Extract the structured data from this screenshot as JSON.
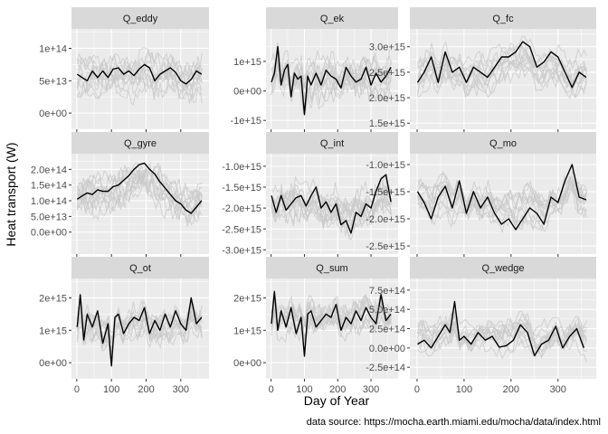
{
  "chart_data": {
    "type": "line",
    "layout": "facet-grid-3x3",
    "ylabel": "Heat transport (W)",
    "xlabel": "Day of Year",
    "caption": "data source: https://mocha.earth.miami.edu/mocha/data/index.html",
    "x_range": [
      1,
      365
    ],
    "x_ticks": [
      0,
      100,
      200,
      300
    ],
    "x_tick_labels": [
      "0",
      "100",
      "200",
      "300"
    ],
    "grid": true,
    "colors": {
      "highlight": "#000000",
      "background_series": "#c8c8c8",
      "panel_bg": "#ebebeb",
      "strip_bg": "#d9d9d9",
      "gridline": "#ffffff"
    },
    "panels": [
      {
        "name": "Q_eddy",
        "ylim": [
          -25000000000000.0,
          130000000000000.0
        ],
        "y_ticks": [
          0,
          50000000000000.0,
          100000000000000.0
        ],
        "y_tick_labels": [
          "0e+00",
          "5e+13",
          "1e+14"
        ],
        "highlight": {
          "x": [
            1,
            15,
            30,
            45,
            60,
            75,
            90,
            105,
            120,
            135,
            150,
            165,
            180,
            195,
            210,
            225,
            240,
            255,
            270,
            285,
            300,
            315,
            330,
            345,
            360
          ],
          "y": [
            60000000000000.0,
            55000000000000.0,
            50000000000000.0,
            65000000000000.0,
            55000000000000.0,
            65000000000000.0,
            55000000000000.0,
            68000000000000.0,
            70000000000000.0,
            60000000000000.0,
            65000000000000.0,
            58000000000000.0,
            68000000000000.0,
            75000000000000.0,
            70000000000000.0,
            50000000000000.0,
            60000000000000.0,
            65000000000000.0,
            70000000000000.0,
            63000000000000.0,
            50000000000000.0,
            45000000000000.0,
            52000000000000.0,
            65000000000000.0,
            60000000000000.0
          ]
        },
        "background_band": {
          "min": -10000000000000.0,
          "max": 110000000000000.0
        }
      },
      {
        "name": "Q_ek",
        "ylim": [
          -1300000000000000.0,
          2100000000000000.0
        ],
        "y_ticks": [
          -1000000000000000.0,
          0,
          1000000000000000.0
        ],
        "y_tick_labels": [
          "-1e+15",
          "0e+00",
          "1e+15"
        ],
        "highlight": {
          "x": [
            1,
            10,
            20,
            30,
            40,
            50,
            60,
            70,
            80,
            90,
            100,
            110,
            120,
            135,
            150,
            165,
            180,
            195,
            210,
            225,
            240,
            255,
            270,
            285,
            300,
            315,
            330,
            345,
            360
          ],
          "y": [
            300000000000000.0,
            600000000000000.0,
            1500000000000000.0,
            200000000000000.0,
            700000000000000.0,
            900000000000000.0,
            -200000000000000.0,
            600000000000000.0,
            400000000000000.0,
            500000000000000.0,
            -800000000000000.0,
            500000000000000.0,
            200000000000000.0,
            600000000000000.0,
            200000000000000.0,
            700000000000000.0,
            500000000000000.0,
            400000000000000.0,
            100000000000000.0,
            800000000000000.0,
            500000000000000.0,
            300000000000000.0,
            400000000000000.0,
            800000000000000.0,
            200000000000000.0,
            600000000000000.0,
            300000000000000.0,
            500000000000000.0,
            800000000000000.0
          ]
        },
        "background_band": {
          "min": -1000000000000000.0,
          "max": 1700000000000000.0
        }
      },
      {
        "name": "Q_fc",
        "ylim": [
          1380000000000000.0,
          3350000000000000.0
        ],
        "y_ticks": [
          1500000000000000.0,
          2000000000000000.0,
          2500000000000000.0,
          3000000000000000.0
        ],
        "y_tick_labels": [
          "1.5e+15",
          "2.0e+15",
          "2.5e+15",
          "3.0e+15"
        ],
        "highlight": {
          "x": [
            1,
            15,
            30,
            45,
            60,
            75,
            90,
            105,
            120,
            135,
            150,
            165,
            180,
            195,
            210,
            225,
            240,
            255,
            270,
            285,
            300,
            315,
            330,
            345,
            360
          ],
          "y": [
            2300000000000000.0,
            2500000000000000.0,
            2800000000000000.0,
            2300000000000000.0,
            2900000000000000.0,
            2500000000000000.0,
            2600000000000000.0,
            2300000000000000.0,
            2600000000000000.0,
            2500000000000000.0,
            2400000000000000.0,
            2600000000000000.0,
            2800000000000000.0,
            2800000000000000.0,
            2900000000000000.0,
            3100000000000000.0,
            3000000000000000.0,
            2600000000000000.0,
            2700000000000000.0,
            2900000000000000.0,
            2800000000000000.0,
            2500000000000000.0,
            2200000000000000.0,
            2500000000000000.0,
            2400000000000000.0
          ]
        },
        "background_band": {
          "min": 1750000000000000.0,
          "max": 3200000000000000.0
        }
      },
      {
        "name": "Q_gyre",
        "ylim": [
          -70000000000000.0,
          250000000000000.0
        ],
        "y_ticks": [
          0,
          50000000000000.0,
          100000000000000.0,
          150000000000000.0,
          200000000000000.0
        ],
        "y_tick_labels": [
          "0.0e+00",
          "5.0e+13",
          "1.0e+14",
          "1.5e+14",
          "2.0e+14"
        ],
        "highlight": {
          "x": [
            1,
            15,
            30,
            45,
            60,
            75,
            90,
            105,
            120,
            135,
            150,
            165,
            180,
            195,
            210,
            225,
            240,
            255,
            270,
            285,
            300,
            315,
            330,
            345,
            360
          ],
          "y": [
            105000000000000.0,
            115000000000000.0,
            125000000000000.0,
            120000000000000.0,
            135000000000000.0,
            130000000000000.0,
            130000000000000.0,
            145000000000000.0,
            150000000000000.0,
            165000000000000.0,
            180000000000000.0,
            200000000000000.0,
            215000000000000.0,
            220000000000000.0,
            200000000000000.0,
            185000000000000.0,
            160000000000000.0,
            140000000000000.0,
            120000000000000.0,
            100000000000000.0,
            90000000000000.0,
            70000000000000.0,
            60000000000000.0,
            80000000000000.0,
            100000000000000.0
          ]
        },
        "background_band": {
          "min": -30000000000000.0,
          "max": 220000000000000.0
        }
      },
      {
        "name": "Q_int",
        "ylim": [
          -3100000000000000.0,
          -700000000000000.0
        ],
        "y_ticks": [
          -3000000000000000.0,
          -2500000000000000.0,
          -2000000000000000.0,
          -1500000000000000.0,
          -1000000000000000.0
        ],
        "y_tick_labels": [
          "-3.0e+15",
          "-2.5e+15",
          "-2.0e+15",
          "-1.5e+15",
          "-1.0e+15"
        ],
        "highlight": {
          "x": [
            1,
            15,
            30,
            45,
            60,
            75,
            90,
            105,
            120,
            135,
            150,
            165,
            180,
            195,
            210,
            225,
            240,
            255,
            270,
            285,
            300,
            315,
            330,
            345,
            360
          ],
          "y": [
            -1700000000000000.0,
            -2100000000000000.0,
            -1700000000000000.0,
            -2050000000000000.0,
            -1900000000000000.0,
            -1750000000000000.0,
            -1700000000000000.0,
            -1950000000000000.0,
            -1700000000000000.0,
            -1500000000000000.0,
            -2000000000000000.0,
            -1850000000000000.0,
            -2100000000000000.0,
            -1900000000000000.0,
            -2400000000000000.0,
            -2300000000000000.0,
            -2600000000000000.0,
            -2100000000000000.0,
            -2200000000000000.0,
            -1900000000000000.0,
            -2000000000000000.0,
            -1600000000000000.0,
            -1300000000000000.0,
            -1200000000000000.0,
            -1850000000000000.0
          ]
        },
        "background_band": {
          "min": -2800000000000000.0,
          "max": -1000000000000000.0
        }
      },
      {
        "name": "Q_mo",
        "ylim": [
          -2650000000000000.0,
          -800000000000000.0
        ],
        "y_ticks": [
          -2500000000000000.0,
          -2000000000000000.0,
          -1500000000000000.0,
          -1000000000000000.0
        ],
        "y_tick_labels": [
          "-2.5e+15",
          "-2.0e+15",
          "-1.5e+15",
          "-1.0e+15"
        ],
        "highlight": {
          "x": [
            1,
            15,
            30,
            45,
            60,
            75,
            90,
            105,
            120,
            135,
            150,
            165,
            180,
            195,
            210,
            225,
            240,
            255,
            270,
            285,
            300,
            315,
            330,
            345,
            360
          ],
          "y": [
            -1500000000000000.0,
            -1700000000000000.0,
            -2000000000000000.0,
            -1600000000000000.0,
            -1400000000000000.0,
            -1800000000000000.0,
            -1300000000000000.0,
            -1900000000000000.0,
            -1500000000000000.0,
            -1800000000000000.0,
            -1600000000000000.0,
            -1900000000000000.0,
            -2100000000000000.0,
            -2000000000000000.0,
            -2200000000000000.0,
            -2000000000000000.0,
            -1800000000000000.0,
            -1900000000000000.0,
            -2100000000000000.0,
            -1600000000000000.0,
            -1700000000000000.0,
            -1300000000000000.0,
            -1000000000000000.0,
            -1600000000000000.0,
            -1650000000000000.0
          ]
        },
        "background_band": {
          "min": -2400000000000000.0,
          "max": -1000000000000000.0
        }
      },
      {
        "name": "Q_ot",
        "ylim": [
          -500000000000000.0,
          2600000000000000.0
        ],
        "y_ticks": [
          0,
          1000000000000000.0,
          2000000000000000.0
        ],
        "y_tick_labels": [
          "0e+00",
          "1e+15",
          "2e+15"
        ],
        "highlight": {
          "x": [
            1,
            10,
            20,
            30,
            45,
            60,
            75,
            90,
            100,
            110,
            120,
            135,
            150,
            165,
            180,
            195,
            210,
            225,
            240,
            255,
            270,
            285,
            300,
            315,
            330,
            345,
            360
          ],
          "y": [
            1100000000000000.0,
            2100000000000000.0,
            700000000000000.0,
            1500000000000000.0,
            1100000000000000.0,
            1600000000000000.0,
            600000000000000.0,
            1200000000000000.0,
            -100000000000000.0,
            1400000000000000.0,
            1500000000000000.0,
            900000000000000.0,
            1200000000000000.0,
            1400000000000000.0,
            1300000000000000.0,
            1700000000000000.0,
            900000000000000.0,
            1300000000000000.0,
            1000000000000000.0,
            1500000000000000.0,
            1100000000000000.0,
            1600000000000000.0,
            1200000000000000.0,
            1000000000000000.0,
            2000000000000000.0,
            1200000000000000.0,
            1400000000000000.0
          ]
        },
        "background_band": {
          "min": 100000000000000.0,
          "max": 2200000000000000.0
        }
      },
      {
        "name": "Q_sum",
        "ylim": [
          -500000000000000.0,
          2600000000000000.0
        ],
        "y_ticks": [
          0,
          1000000000000000.0,
          2000000000000000.0
        ],
        "y_tick_labels": [
          "0e+00",
          "1e+15",
          "2e+15"
        ],
        "highlight": {
          "x": [
            1,
            10,
            20,
            30,
            45,
            60,
            75,
            90,
            100,
            110,
            120,
            135,
            150,
            165,
            180,
            195,
            210,
            225,
            240,
            255,
            270,
            285,
            300,
            315,
            330,
            345,
            360
          ],
          "y": [
            1200000000000000.0,
            2200000000000000.0,
            1000000000000000.0,
            1600000000000000.0,
            1100000000000000.0,
            1700000000000000.0,
            900000000000000.0,
            1400000000000000.0,
            200000000000000.0,
            1500000000000000.0,
            1600000000000000.0,
            1100000000000000.0,
            1300000000000000.0,
            1500000000000000.0,
            1400000000000000.0,
            1800000000000000.0,
            1000000000000000.0,
            1400000000000000.0,
            1200000000000000.0,
            1600000000000000.0,
            1300000000000000.0,
            1700000000000000.0,
            1400000000000000.0,
            1200000000000000.0,
            2100000000000000.0,
            1300000000000000.0,
            1500000000000000.0
          ]
        },
        "background_band": {
          "min": 200000000000000.0,
          "max": 2300000000000000.0
        }
      },
      {
        "name": "Q_wedge",
        "ylim": [
          -400000000000000.0,
          900000000000000.0
        ],
        "y_ticks": [
          -250000000000000.0,
          0,
          250000000000000.0,
          500000000000000.0,
          750000000000000.0
        ],
        "y_tick_labels": [
          "-2.5e+14",
          "0.0e+00",
          "2.5e+14",
          "5.0e+14",
          "7.5e+14"
        ],
        "highlight": {
          "x": [
            1,
            15,
            30,
            45,
            60,
            70,
            80,
            90,
            100,
            115,
            130,
            145,
            160,
            175,
            190,
            205,
            220,
            235,
            250,
            265,
            280,
            295,
            310,
            325,
            340,
            355
          ],
          "y": [
            50000000000000.0,
            100000000000000.0,
            0,
            150000000000000.0,
            300000000000000.0,
            200000000000000.0,
            600000000000000.0,
            100000000000000.0,
            150000000000000.0,
            50000000000000.0,
            200000000000000.0,
            100000000000000.0,
            150000000000000.0,
            10000000000000.0,
            30000000000000.0,
            100000000000000.0,
            300000000000000.0,
            200000000000000.0,
            -100000000000000.0,
            50000000000000.0,
            100000000000000.0,
            280000000000000.0,
            0,
            150000000000000.0,
            250000000000000.0,
            0
          ]
        },
        "background_band": {
          "min": -250000000000000.0,
          "max": 600000000000000.0
        }
      }
    ]
  }
}
